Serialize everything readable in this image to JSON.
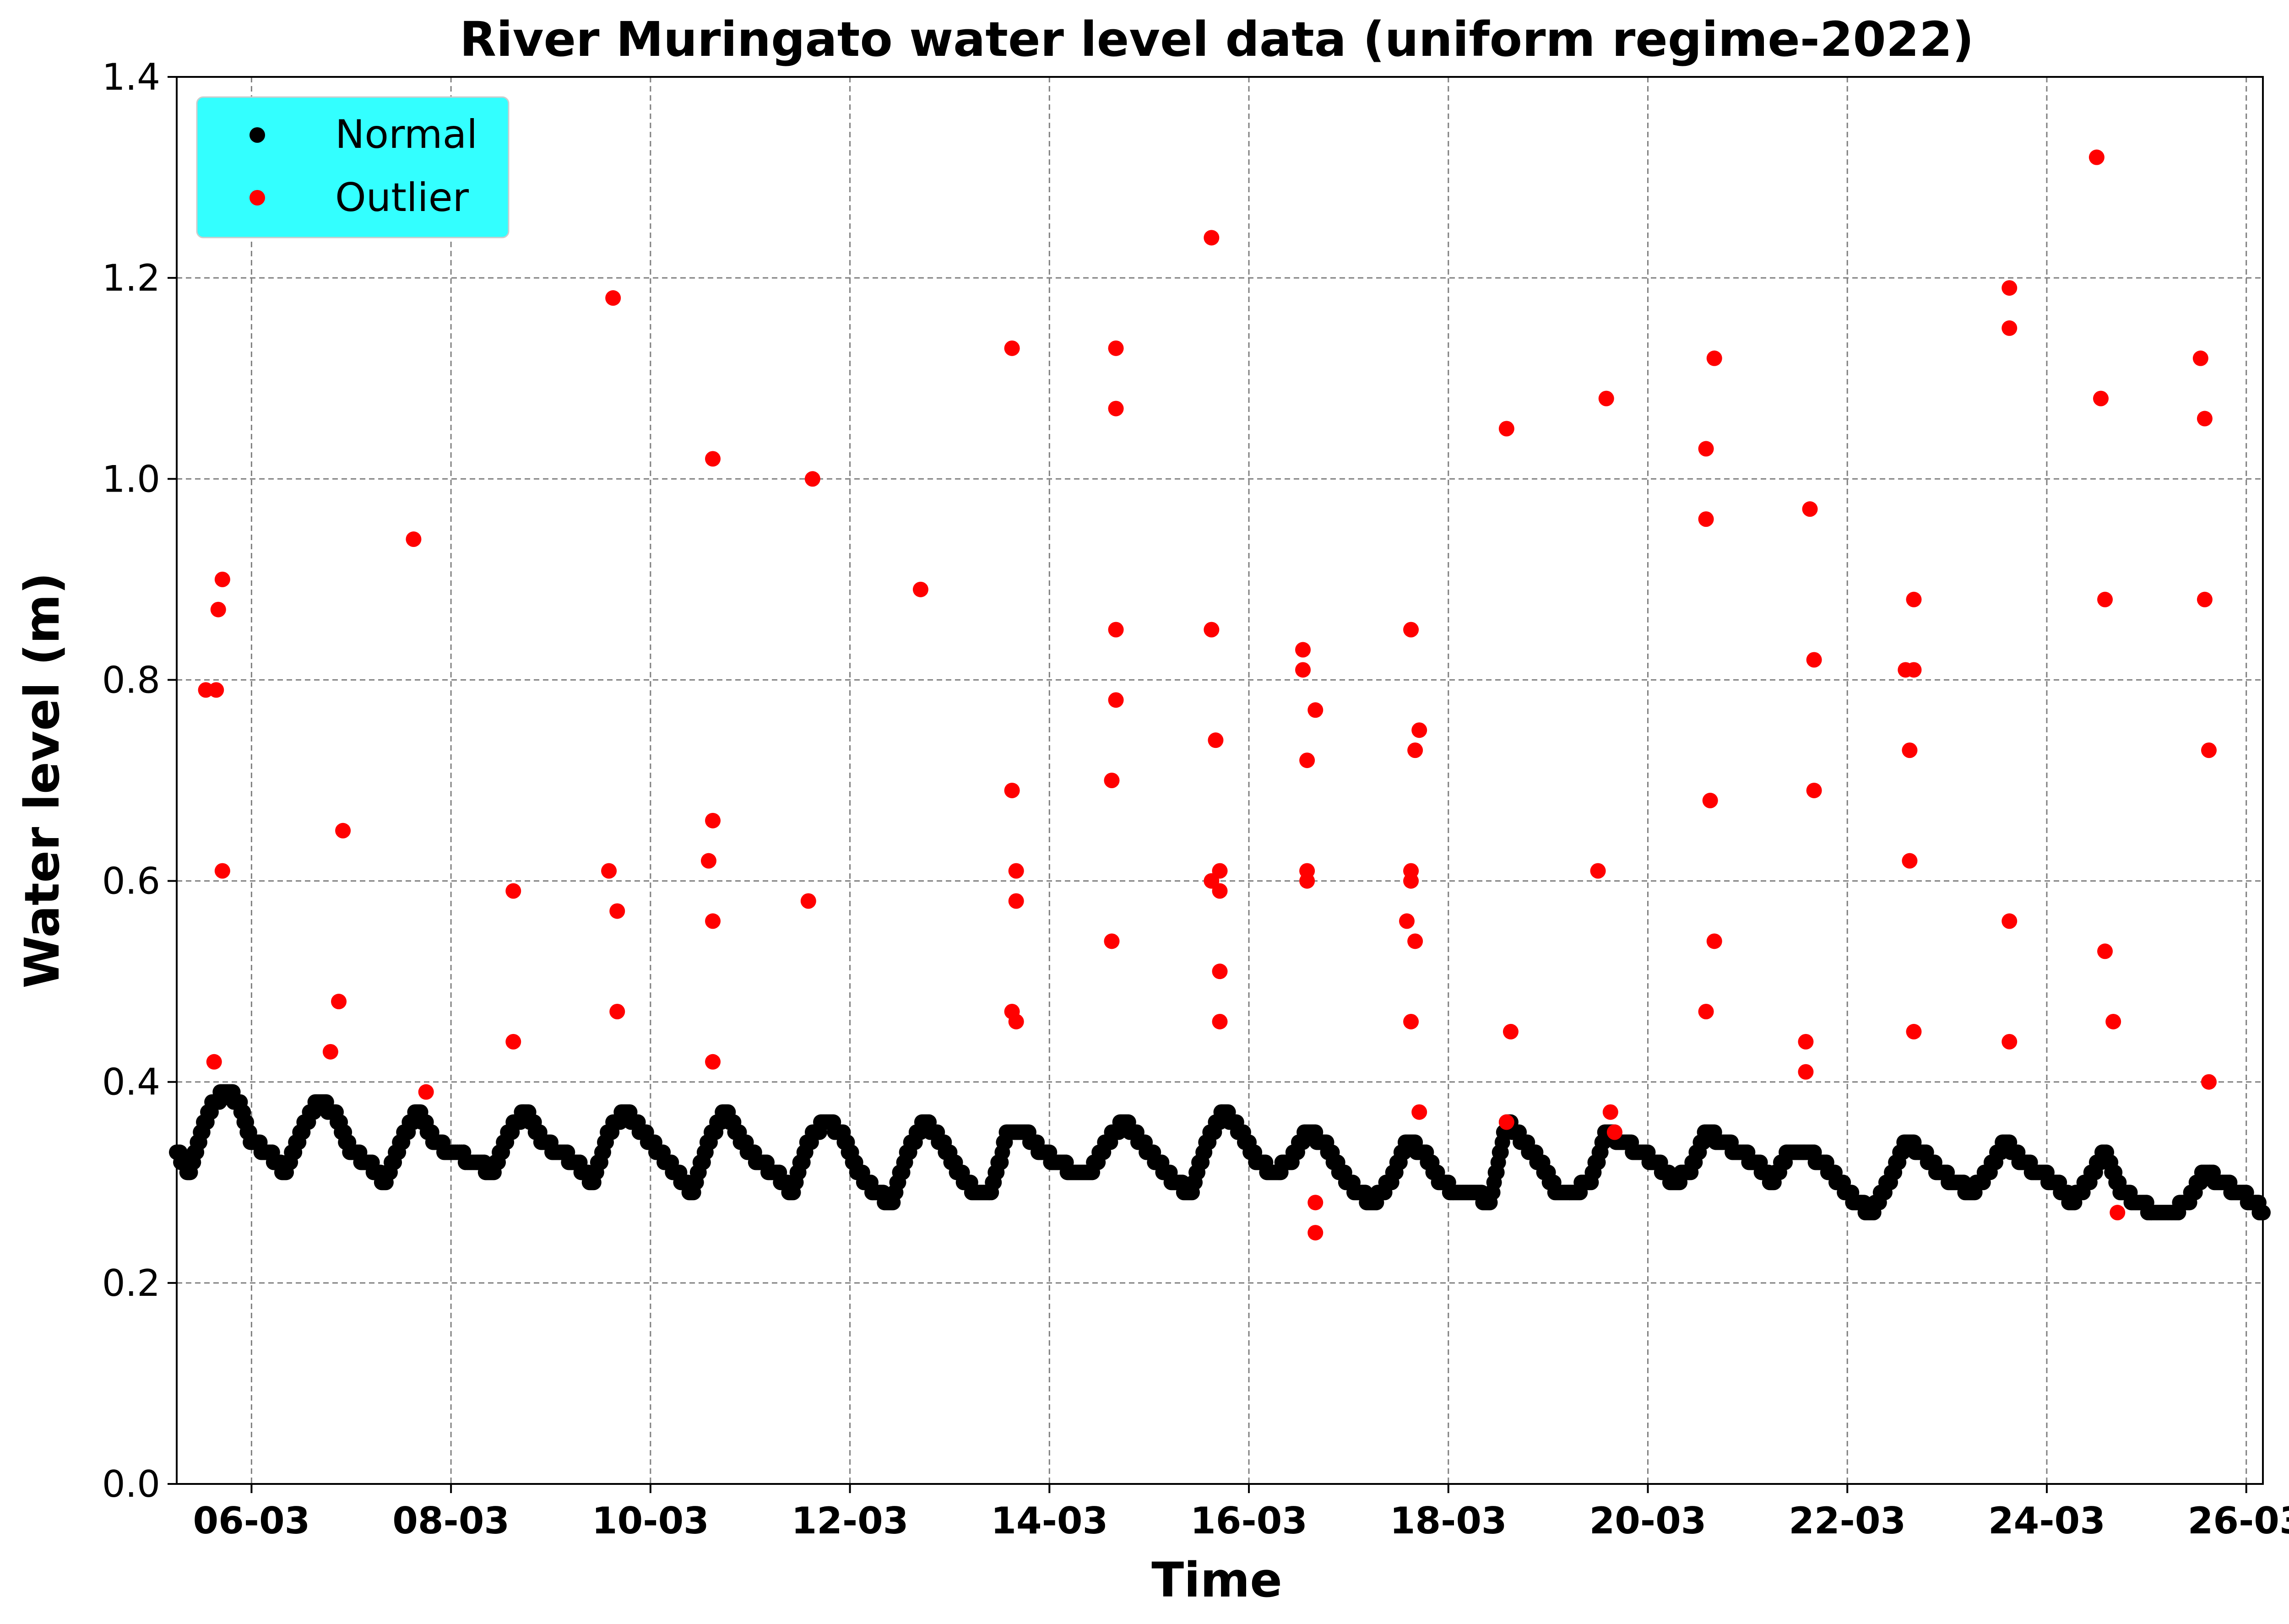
{
  "chart_data": {
    "type": "scatter",
    "title": "River Muringato water level data (uniform regime-2022)",
    "xlabel": "Time",
    "ylabel": "Water level (m)",
    "x_axis_type": "date",
    "xlim": [
      "2022-03-05 06:00",
      "2022-03-26 04:00"
    ],
    "ylim": [
      0,
      1.4
    ],
    "yticks": [
      0.0,
      0.2,
      0.4,
      0.6,
      0.8,
      1.0,
      1.2,
      1.4
    ],
    "ytick_labels": [
      "0.0",
      "0.2",
      "0.4",
      "0.6",
      "0.8",
      "1.0",
      "1.2",
      "1.4"
    ],
    "xticks": [
      "2022-03-06",
      "2022-03-08",
      "2022-03-10",
      "2022-03-12",
      "2022-03-14",
      "2022-03-16",
      "2022-03-18",
      "2022-03-20",
      "2022-03-22",
      "2022-03-24",
      "2022-03-26"
    ],
    "xtick_labels": [
      "06-03",
      "08-03",
      "10-03",
      "12-03",
      "14-03",
      "16-03",
      "18-03",
      "20-03",
      "22-03",
      "24-03",
      "26-03"
    ],
    "grid": true,
    "legend": {
      "placement": "top-left",
      "background": "#33ffff",
      "entries": [
        "Normal",
        "Outlier"
      ]
    },
    "series": [
      {
        "name": "Normal",
        "color": "#000000",
        "points": [
          [
            "2022-03-05 06:00",
            0.33
          ],
          [
            "2022-03-05 09:00",
            0.31
          ],
          [
            "2022-03-05 12:00",
            0.35
          ],
          [
            "2022-03-05 15:00",
            0.38
          ],
          [
            "2022-03-05 18:00",
            0.39
          ],
          [
            "2022-03-05 21:00",
            0.38
          ],
          [
            "2022-03-06 00:00",
            0.34
          ],
          [
            "2022-03-06 04:00",
            0.33
          ],
          [
            "2022-03-06 08:00",
            0.31
          ],
          [
            "2022-03-06 12:00",
            0.35
          ],
          [
            "2022-03-06 16:00",
            0.38
          ],
          [
            "2022-03-06 20:00",
            0.37
          ],
          [
            "2022-03-07 00:00",
            0.33
          ],
          [
            "2022-03-07 04:00",
            0.32
          ],
          [
            "2022-03-07 08:00",
            0.3
          ],
          [
            "2022-03-07 12:00",
            0.34
          ],
          [
            "2022-03-07 16:00",
            0.37
          ],
          [
            "2022-03-07 20:00",
            0.34
          ],
          [
            "2022-03-08 00:00",
            0.33
          ],
          [
            "2022-03-08 06:00",
            0.32
          ],
          [
            "2022-03-08 10:00",
            0.31
          ],
          [
            "2022-03-08 14:00",
            0.35
          ],
          [
            "2022-03-08 18:00",
            0.37
          ],
          [
            "2022-03-08 22:00",
            0.34
          ],
          [
            "2022-03-09 02:00",
            0.33
          ],
          [
            "2022-03-09 06:00",
            0.32
          ],
          [
            "2022-03-09 10:00",
            0.3
          ],
          [
            "2022-03-09 14:00",
            0.35
          ],
          [
            "2022-03-09 18:00",
            0.37
          ],
          [
            "2022-03-09 22:00",
            0.35
          ],
          [
            "2022-03-10 02:00",
            0.33
          ],
          [
            "2022-03-10 06:00",
            0.31
          ],
          [
            "2022-03-10 10:00",
            0.29
          ],
          [
            "2022-03-10 14:00",
            0.34
          ],
          [
            "2022-03-10 18:00",
            0.37
          ],
          [
            "2022-03-10 22:00",
            0.34
          ],
          [
            "2022-03-11 02:00",
            0.32
          ],
          [
            "2022-03-11 06:00",
            0.31
          ],
          [
            "2022-03-11 10:00",
            0.29
          ],
          [
            "2022-03-11 14:00",
            0.34
          ],
          [
            "2022-03-11 18:00",
            0.36
          ],
          [
            "2022-03-11 22:00",
            0.35
          ],
          [
            "2022-03-12 02:00",
            0.31
          ],
          [
            "2022-03-12 06:00",
            0.29
          ],
          [
            "2022-03-12 10:00",
            0.28
          ],
          [
            "2022-03-12 14:00",
            0.33
          ],
          [
            "2022-03-12 18:00",
            0.36
          ],
          [
            "2022-03-12 22:00",
            0.34
          ],
          [
            "2022-03-13 02:00",
            0.31
          ],
          [
            "2022-03-13 06:00",
            0.29
          ],
          [
            "2022-03-13 10:00",
            0.29
          ],
          [
            "2022-03-13 14:00",
            0.35
          ],
          [
            "2022-03-13 18:00",
            0.35
          ],
          [
            "2022-03-13 22:00",
            0.33
          ],
          [
            "2022-03-14 02:00",
            0.32
          ],
          [
            "2022-03-14 06:00",
            0.31
          ],
          [
            "2022-03-14 10:00",
            0.31
          ],
          [
            "2022-03-14 14:00",
            0.34
          ],
          [
            "2022-03-14 18:00",
            0.36
          ],
          [
            "2022-03-14 22:00",
            0.34
          ],
          [
            "2022-03-15 02:00",
            0.32
          ],
          [
            "2022-03-15 06:00",
            0.3
          ],
          [
            "2022-03-15 10:00",
            0.29
          ],
          [
            "2022-03-15 14:00",
            0.34
          ],
          [
            "2022-03-15 18:00",
            0.37
          ],
          [
            "2022-03-15 22:00",
            0.35
          ],
          [
            "2022-03-16 02:00",
            0.32
          ],
          [
            "2022-03-16 06:00",
            0.31
          ],
          [
            "2022-03-16 10:00",
            0.32
          ],
          [
            "2022-03-16 14:00",
            0.35
          ],
          [
            "2022-03-16 18:00",
            0.34
          ],
          [
            "2022-03-16 22:00",
            0.31
          ],
          [
            "2022-03-17 02:00",
            0.29
          ],
          [
            "2022-03-17 06:00",
            0.28
          ],
          [
            "2022-03-17 10:00",
            0.3
          ],
          [
            "2022-03-17 14:00",
            0.34
          ],
          [
            "2022-03-17 18:00",
            0.33
          ],
          [
            "2022-03-17 22:00",
            0.3
          ],
          [
            "2022-03-18 02:00",
            0.29
          ],
          [
            "2022-03-18 06:00",
            0.29
          ],
          [
            "2022-03-18 10:00",
            0.28
          ],
          [
            "2022-03-18 14:00",
            0.36
          ],
          [
            "2022-03-18 18:00",
            0.34
          ],
          [
            "2022-03-18 22:00",
            0.32
          ],
          [
            "2022-03-19 02:00",
            0.29
          ],
          [
            "2022-03-19 06:00",
            0.29
          ],
          [
            "2022-03-19 10:00",
            0.3
          ],
          [
            "2022-03-19 14:00",
            0.35
          ],
          [
            "2022-03-19 18:00",
            0.34
          ],
          [
            "2022-03-19 22:00",
            0.33
          ],
          [
            "2022-03-20 02:00",
            0.32
          ],
          [
            "2022-03-20 06:00",
            0.3
          ],
          [
            "2022-03-20 10:00",
            0.31
          ],
          [
            "2022-03-20 14:00",
            0.35
          ],
          [
            "2022-03-20 18:00",
            0.34
          ],
          [
            "2022-03-20 22:00",
            0.33
          ],
          [
            "2022-03-21 02:00",
            0.32
          ],
          [
            "2022-03-21 06:00",
            0.3
          ],
          [
            "2022-03-21 10:00",
            0.33
          ],
          [
            "2022-03-21 14:00",
            0.33
          ],
          [
            "2022-03-21 18:00",
            0.32
          ],
          [
            "2022-03-21 22:00",
            0.3
          ],
          [
            "2022-03-22 02:00",
            0.28
          ],
          [
            "2022-03-22 06:00",
            0.27
          ],
          [
            "2022-03-22 10:00",
            0.3
          ],
          [
            "2022-03-22 14:00",
            0.34
          ],
          [
            "2022-03-22 18:00",
            0.33
          ],
          [
            "2022-03-22 22:00",
            0.31
          ],
          [
            "2022-03-23 02:00",
            0.3
          ],
          [
            "2022-03-23 06:00",
            0.29
          ],
          [
            "2022-03-23 10:00",
            0.31
          ],
          [
            "2022-03-23 14:00",
            0.34
          ],
          [
            "2022-03-23 18:00",
            0.32
          ],
          [
            "2022-03-23 22:00",
            0.31
          ],
          [
            "2022-03-24 02:00",
            0.3
          ],
          [
            "2022-03-24 06:00",
            0.28
          ],
          [
            "2022-03-24 10:00",
            0.3
          ],
          [
            "2022-03-24 14:00",
            0.33
          ],
          [
            "2022-03-24 18:00",
            0.29
          ],
          [
            "2022-03-24 22:00",
            0.28
          ],
          [
            "2022-03-25 02:00",
            0.27
          ],
          [
            "2022-03-25 06:00",
            0.27
          ],
          [
            "2022-03-25 10:00",
            0.28
          ],
          [
            "2022-03-25 14:00",
            0.31
          ],
          [
            "2022-03-25 18:00",
            0.3
          ],
          [
            "2022-03-25 22:00",
            0.29
          ],
          [
            "2022-03-26 02:00",
            0.28
          ],
          [
            "2022-03-26 04:00",
            0.27
          ]
        ]
      },
      {
        "name": "Outlier",
        "color": "#ff0000",
        "points": [
          [
            "2022-03-05 13:00",
            0.79
          ],
          [
            "2022-03-05 15:30",
            0.79
          ],
          [
            "2022-03-05 15:00",
            0.42
          ],
          [
            "2022-03-05 16:00",
            0.87
          ],
          [
            "2022-03-05 17:00",
            0.9
          ],
          [
            "2022-03-05 17:00",
            0.61
          ],
          [
            "2022-03-06 19:00",
            0.43
          ],
          [
            "2022-03-06 21:00",
            0.48
          ],
          [
            "2022-03-06 22:00",
            0.65
          ],
          [
            "2022-03-07 15:00",
            0.94
          ],
          [
            "2022-03-07 18:00",
            0.39
          ],
          [
            "2022-03-08 15:00",
            0.59
          ],
          [
            "2022-03-08 15:00",
            0.44
          ],
          [
            "2022-03-09 14:00",
            0.61
          ],
          [
            "2022-03-09 15:00",
            1.18
          ],
          [
            "2022-03-09 16:00",
            0.57
          ],
          [
            "2022-03-09 16:00",
            0.47
          ],
          [
            "2022-03-10 14:00",
            0.62
          ],
          [
            "2022-03-10 15:00",
            1.02
          ],
          [
            "2022-03-10 15:00",
            0.66
          ],
          [
            "2022-03-10 15:00",
            0.56
          ],
          [
            "2022-03-10 15:00",
            0.42
          ],
          [
            "2022-03-11 14:00",
            0.58
          ],
          [
            "2022-03-11 15:00",
            1.0
          ],
          [
            "2022-03-12 17:00",
            0.89
          ],
          [
            "2022-03-13 15:00",
            1.13
          ],
          [
            "2022-03-13 15:00",
            0.69
          ],
          [
            "2022-03-13 15:00",
            0.47
          ],
          [
            "2022-03-13 16:00",
            0.61
          ],
          [
            "2022-03-13 16:00",
            0.58
          ],
          [
            "2022-03-13 16:00",
            0.46
          ],
          [
            "2022-03-14 15:00",
            0.7
          ],
          [
            "2022-03-14 15:00",
            0.54
          ],
          [
            "2022-03-14 16:00",
            1.13
          ],
          [
            "2022-03-14 16:00",
            1.07
          ],
          [
            "2022-03-14 16:00",
            0.85
          ],
          [
            "2022-03-14 16:00",
            0.78
          ],
          [
            "2022-03-15 15:00",
            1.24
          ],
          [
            "2022-03-15 15:00",
            0.85
          ],
          [
            "2022-03-15 15:00",
            0.6
          ],
          [
            "2022-03-15 16:00",
            0.74
          ],
          [
            "2022-03-15 17:00",
            0.61
          ],
          [
            "2022-03-15 17:00",
            0.59
          ],
          [
            "2022-03-15 17:00",
            0.51
          ],
          [
            "2022-03-15 17:00",
            0.46
          ],
          [
            "2022-03-16 13:00",
            0.83
          ],
          [
            "2022-03-16 13:00",
            0.81
          ],
          [
            "2022-03-16 14:00",
            0.72
          ],
          [
            "2022-03-16 14:00",
            0.61
          ],
          [
            "2022-03-16 14:00",
            0.6
          ],
          [
            "2022-03-16 16:00",
            0.77
          ],
          [
            "2022-03-16 16:00",
            0.28
          ],
          [
            "2022-03-16 16:00",
            0.25
          ],
          [
            "2022-03-17 14:00",
            0.56
          ],
          [
            "2022-03-17 15:00",
            0.85
          ],
          [
            "2022-03-17 15:00",
            0.61
          ],
          [
            "2022-03-17 15:00",
            0.6
          ],
          [
            "2022-03-17 15:00",
            0.46
          ],
          [
            "2022-03-17 16:00",
            0.73
          ],
          [
            "2022-03-17 16:00",
            0.54
          ],
          [
            "2022-03-17 17:00",
            0.75
          ],
          [
            "2022-03-17 17:00",
            0.37
          ],
          [
            "2022-03-18 14:00",
            1.05
          ],
          [
            "2022-03-18 14:00",
            0.36
          ],
          [
            "2022-03-18 15:00",
            0.45
          ],
          [
            "2022-03-19 12:00",
            0.61
          ],
          [
            "2022-03-19 14:00",
            1.08
          ],
          [
            "2022-03-19 15:00",
            0.37
          ],
          [
            "2022-03-19 16:00",
            0.35
          ],
          [
            "2022-03-20 14:00",
            1.03
          ],
          [
            "2022-03-20 14:00",
            0.96
          ],
          [
            "2022-03-20 14:00",
            0.47
          ],
          [
            "2022-03-20 15:00",
            0.68
          ],
          [
            "2022-03-20 16:00",
            1.12
          ],
          [
            "2022-03-20 16:00",
            0.54
          ],
          [
            "2022-03-21 14:00",
            0.44
          ],
          [
            "2022-03-21 14:00",
            0.41
          ],
          [
            "2022-03-21 15:00",
            0.97
          ],
          [
            "2022-03-21 16:00",
            0.82
          ],
          [
            "2022-03-21 16:00",
            0.69
          ],
          [
            "2022-03-22 14:00",
            0.81
          ],
          [
            "2022-03-22 15:00",
            0.73
          ],
          [
            "2022-03-22 15:00",
            0.62
          ],
          [
            "2022-03-22 16:00",
            0.88
          ],
          [
            "2022-03-22 16:00",
            0.81
          ],
          [
            "2022-03-22 16:00",
            0.45
          ],
          [
            "2022-03-23 15:00",
            1.19
          ],
          [
            "2022-03-23 15:00",
            1.15
          ],
          [
            "2022-03-23 15:00",
            0.56
          ],
          [
            "2022-03-23 15:00",
            0.44
          ],
          [
            "2022-03-24 12:00",
            1.32
          ],
          [
            "2022-03-24 13:00",
            1.08
          ],
          [
            "2022-03-24 14:00",
            0.88
          ],
          [
            "2022-03-24 14:00",
            0.53
          ],
          [
            "2022-03-24 16:00",
            0.46
          ],
          [
            "2022-03-24 17:00",
            0.27
          ],
          [
            "2022-03-25 13:00",
            1.12
          ],
          [
            "2022-03-25 14:00",
            1.06
          ],
          [
            "2022-03-25 14:00",
            0.88
          ],
          [
            "2022-03-25 15:00",
            0.73
          ],
          [
            "2022-03-25 15:00",
            0.4
          ]
        ]
      }
    ]
  }
}
